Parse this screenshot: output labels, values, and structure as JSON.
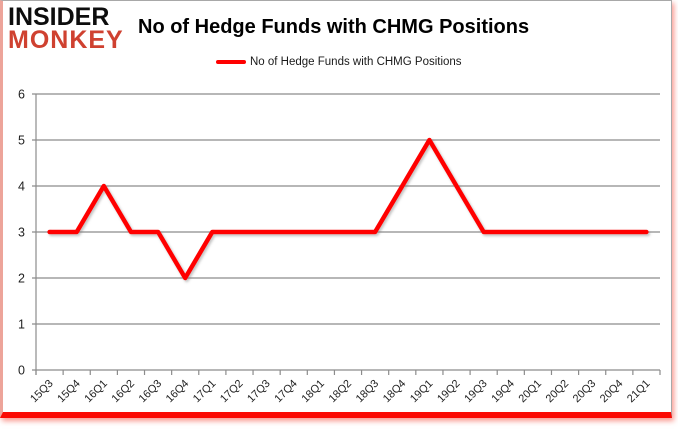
{
  "logo": {
    "line1": "INSIDER",
    "line2": "MONKEY"
  },
  "header": {
    "title": "No of Hedge Funds with CHMG Positions"
  },
  "legend": {
    "label": "No of Hedge Funds with CHMG Positions"
  },
  "colors": {
    "series": "#ff0000",
    "logo_red": "#cf4130",
    "grid": "#8c8c8c",
    "axis_text": "#1f1f1f",
    "bottom_border_red": "#fb0a03"
  },
  "chart_data": {
    "type": "line",
    "title": "No of Hedge Funds with CHMG Positions",
    "categories": [
      "15Q3",
      "15Q4",
      "16Q1",
      "16Q2",
      "16Q3",
      "16Q4",
      "17Q1",
      "17Q2",
      "17Q3",
      "17Q4",
      "18Q1",
      "18Q2",
      "18Q3",
      "18Q4",
      "19Q1",
      "19Q2",
      "19Q3",
      "19Q4",
      "20Q1",
      "20Q2",
      "20Q3",
      "20Q4",
      "21Q1"
    ],
    "series": [
      {
        "name": "No of Hedge Funds with CHMG Positions",
        "values": [
          3,
          3,
          4,
          3,
          3,
          2,
          3,
          3,
          3,
          3,
          3,
          3,
          3,
          4,
          5,
          4,
          3,
          3,
          3,
          3,
          3,
          3,
          3
        ]
      }
    ],
    "xlabel": "",
    "ylabel": "",
    "ylim": [
      0,
      6
    ],
    "yticks": [
      0,
      1,
      2,
      3,
      4,
      5,
      6
    ],
    "grid": true,
    "legend_position": "top-center"
  }
}
